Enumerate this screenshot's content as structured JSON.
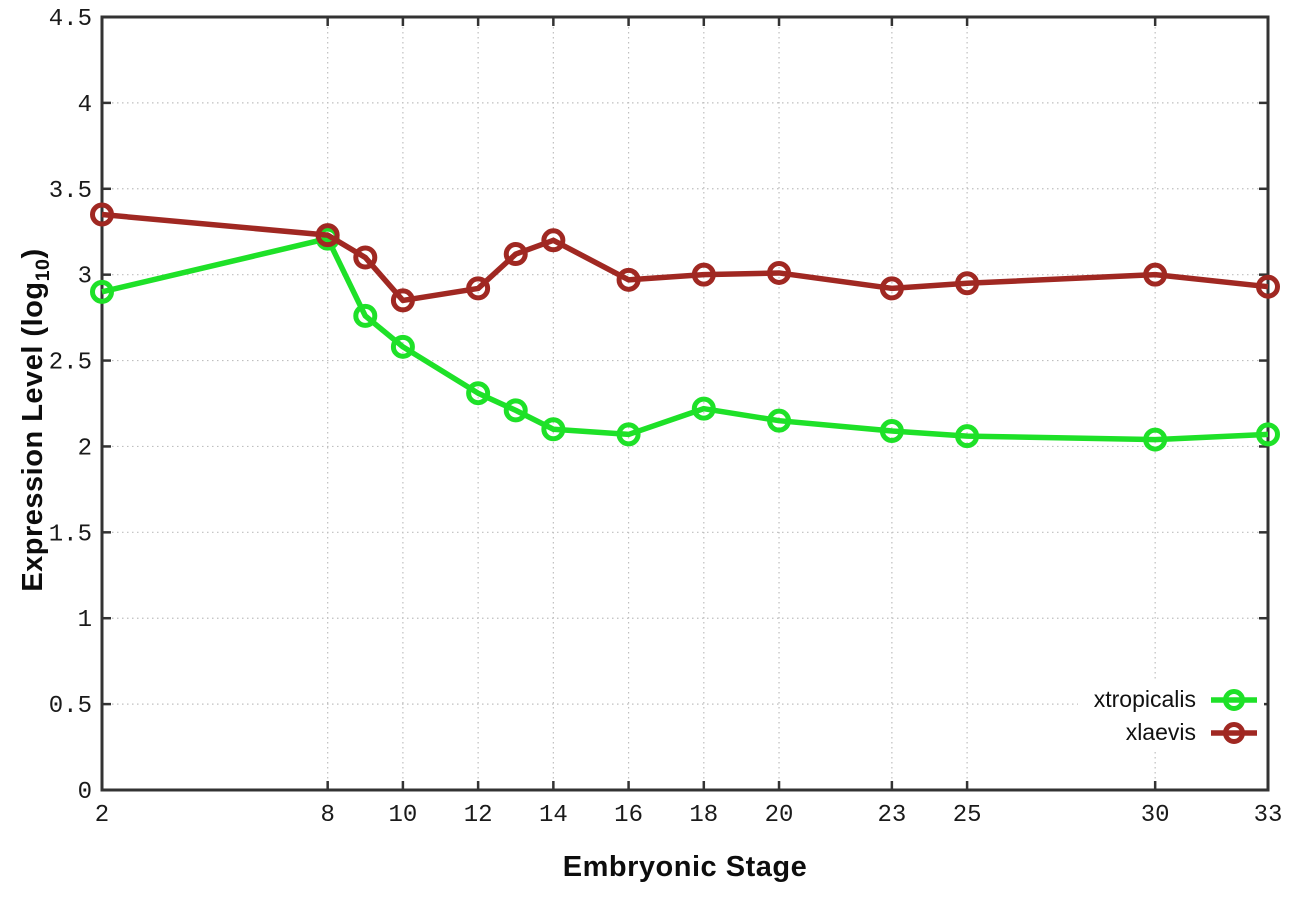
{
  "chart_data": {
    "type": "line",
    "title": "",
    "xlabel": "Embryonic Stage",
    "ylabel": "Expression Level (log10)",
    "ylabel_parts": {
      "prefix": "Expression Level (log",
      "sub": "10",
      "suffix": ")"
    },
    "x": [
      2,
      8,
      9,
      10,
      12,
      13,
      14,
      16,
      18,
      20,
      23,
      25,
      30,
      33
    ],
    "xlim": [
      2,
      33
    ],
    "ylim": [
      0,
      4.5
    ],
    "x_ticks": [
      2,
      8,
      10,
      12,
      14,
      16,
      18,
      20,
      23,
      25,
      30,
      33
    ],
    "x_tick_labels": [
      "2",
      "8",
      "10",
      "12",
      "14",
      "16",
      "18",
      "20",
      "23",
      "25",
      "30",
      "33"
    ],
    "y_ticks": [
      0,
      0.5,
      1,
      1.5,
      2,
      2.5,
      3,
      3.5,
      4,
      4.5
    ],
    "y_tick_labels": [
      "0",
      "0.5",
      "1",
      "1.5",
      "2",
      "2.5",
      "3",
      "3.5",
      "4",
      "4.5"
    ],
    "grid": true,
    "legend_position": "bottom-right",
    "series": [
      {
        "name": "xtropicalis",
        "color": "#1ee128",
        "marker": "open-circle",
        "values": [
          2.9,
          3.21,
          2.76,
          2.58,
          2.31,
          2.21,
          2.1,
          2.07,
          2.22,
          2.15,
          2.09,
          2.06,
          2.04,
          2.07
        ]
      },
      {
        "name": "xlaevis",
        "color": "#a02822",
        "marker": "open-circle",
        "values": [
          3.35,
          3.23,
          3.1,
          2.85,
          2.92,
          3.12,
          3.2,
          2.97,
          3.0,
          3.01,
          2.92,
          2.95,
          3.0,
          2.93
        ]
      }
    ]
  },
  "colors": {
    "background": "#ffffff",
    "axis": "#333333",
    "grid": "#bfbfbf",
    "tick_label": "#1a1a1a"
  }
}
